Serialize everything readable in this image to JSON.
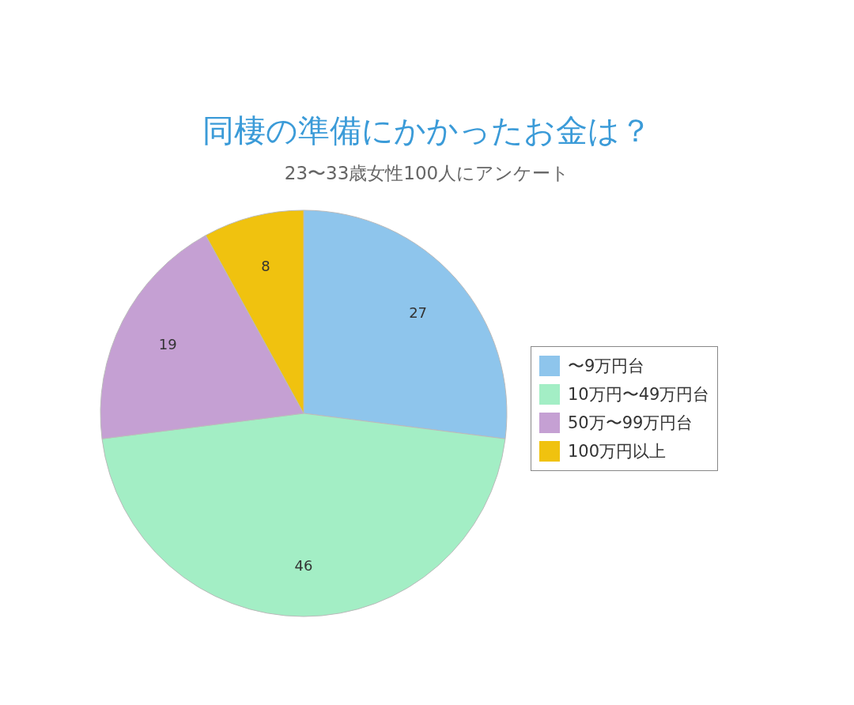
{
  "chart_data": {
    "type": "pie",
    "title": "同棲の準備にかかったお金は？",
    "subtitle": "23〜33歳女性100人にアンケート",
    "categories": [
      "〜9万円台",
      "10万円〜49万円台",
      "50万〜99万円台",
      "100万円以上"
    ],
    "values": [
      27,
      46,
      19,
      8
    ],
    "colors": [
      "#8ec5ec",
      "#a3eec5",
      "#c5a0d3",
      "#f0c20f"
    ],
    "data_labels": true,
    "legend": "right"
  }
}
